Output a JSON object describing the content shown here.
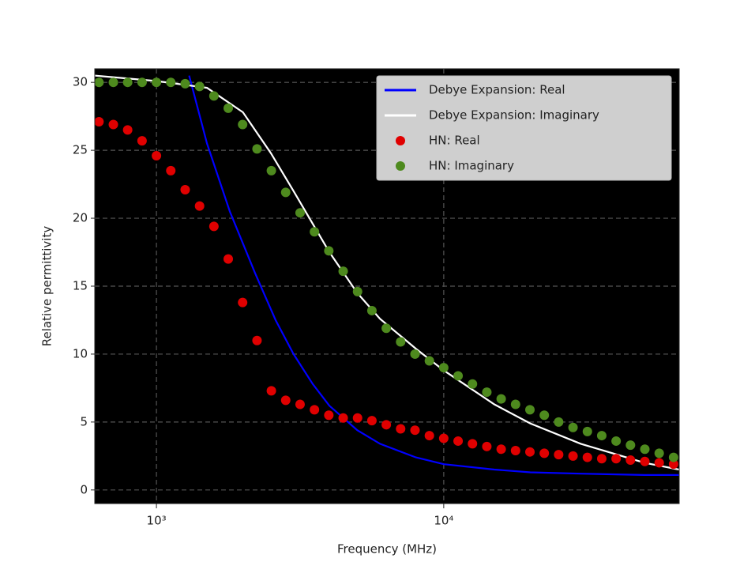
{
  "chart_data": {
    "type": "line",
    "xlabel": "Frequency (MHz)",
    "ylabel": "Relative permittivity",
    "xscale": "log",
    "xlim": [
      610,
      66000
    ],
    "ylim": [
      -1,
      31
    ],
    "xticks": [
      {
        "value": 1000,
        "label": "10³"
      },
      {
        "value": 10000,
        "label": "10⁴"
      }
    ],
    "yticks": [
      0,
      5,
      10,
      15,
      20,
      25,
      30
    ],
    "grid": true,
    "legend": "upper right",
    "background": "#000000",
    "series": [
      {
        "name": "Debye Expansion: Real",
        "color": "#0000ff",
        "style": "line",
        "x": [
          1300,
          1500,
          1800,
          2200,
          2600,
          3000,
          3500,
          4000,
          5000,
          6000,
          8000,
          10000,
          15000,
          20000,
          30000,
          50000,
          66000
        ],
        "values": [
          30.5,
          25.5,
          20.5,
          16,
          12.5,
          10,
          7.8,
          6.2,
          4.4,
          3.4,
          2.4,
          1.9,
          1.5,
          1.3,
          1.2,
          1.1,
          1.1
        ]
      },
      {
        "name": "Debye Expansion: Imaginary",
        "color": "#ffffff",
        "style": "line",
        "x": [
          610,
          1000,
          1500,
          2000,
          2500,
          3000,
          4000,
          5000,
          6000,
          8000,
          10000,
          15000,
          20000,
          30000,
          50000,
          66000
        ],
        "values": [
          30.5,
          30.1,
          29.6,
          27.8,
          24.8,
          22.0,
          17.5,
          14.5,
          12.6,
          10.4,
          8.8,
          6.3,
          4.9,
          3.4,
          2.0,
          1.5
        ]
      },
      {
        "name": "HN: Real",
        "color": "#e00000",
        "style": "marker",
        "x": [
          631,
          708,
          794,
          891,
          1000,
          1122,
          1259,
          1413,
          1585,
          1778,
          1995,
          2239,
          2512,
          2818,
          3162,
          3548,
          3981,
          4467,
          5012,
          5623,
          6310,
          7079,
          7943,
          8913,
          10000,
          11220,
          12589,
          14125,
          15849,
          17783,
          19953,
          22387,
          25119,
          28184,
          31623,
          35481,
          39811,
          44668,
          50119,
          56234,
          63096
        ],
        "values": [
          27.1,
          26.9,
          26.5,
          25.7,
          24.6,
          23.5,
          22.1,
          20.9,
          19.4,
          17.0,
          13.8,
          11.0,
          7.3,
          6.6,
          6.3,
          5.9,
          5.5,
          5.3,
          5.3,
          5.1,
          4.8,
          4.5,
          4.4,
          4.0,
          3.8,
          3.6,
          3.4,
          3.2,
          3.0,
          2.9,
          2.8,
          2.7,
          2.6,
          2.5,
          2.4,
          2.3,
          2.3,
          2.2,
          2.1,
          2.0,
          1.9
        ]
      },
      {
        "name": "HN: Imaginary",
        "color": "#4e8a1e",
        "style": "marker",
        "x": [
          631,
          708,
          794,
          891,
          1000,
          1122,
          1259,
          1413,
          1585,
          1778,
          1995,
          2239,
          2512,
          2818,
          3162,
          3548,
          3981,
          4467,
          5012,
          5623,
          6310,
          7079,
          7943,
          8913,
          10000,
          11220,
          12589,
          14125,
          15849,
          17783,
          19953,
          22387,
          25119,
          28184,
          31623,
          35481,
          39811,
          44668,
          50119,
          56234,
          63096
        ],
        "values": [
          30.0,
          30.0,
          30.0,
          30.0,
          30.0,
          30.0,
          29.9,
          29.7,
          29.0,
          28.1,
          26.9,
          25.1,
          23.5,
          21.9,
          20.4,
          19.0,
          17.6,
          16.1,
          14.6,
          13.2,
          11.9,
          10.9,
          10.0,
          9.5,
          9.0,
          8.4,
          7.8,
          7.2,
          6.7,
          6.3,
          5.9,
          5.5,
          5.0,
          4.6,
          4.3,
          4.0,
          3.6,
          3.3,
          3.0,
          2.7,
          2.4
        ]
      }
    ]
  }
}
